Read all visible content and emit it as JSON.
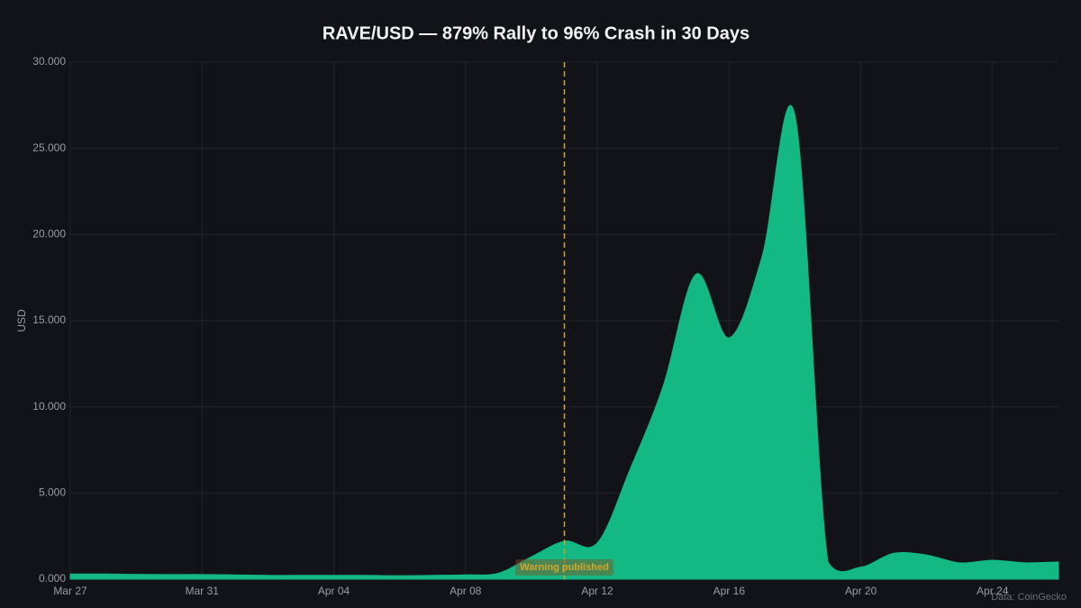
{
  "chart_data": {
    "type": "area",
    "title": "RAVE/USD — 879% Rally to 96% Crash in 30 Days",
    "y_label": "USD",
    "source": "Data: CoinGecko",
    "categories": [
      "Mar 27",
      null,
      null,
      null,
      "Mar 31",
      null,
      null,
      null,
      "Apr 04",
      null,
      null,
      null,
      "Apr 08",
      null,
      null,
      null,
      "Apr 12",
      null,
      null,
      null,
      "Apr 16",
      null,
      null,
      null,
      "Apr 20",
      null,
      null,
      null,
      "Apr 24",
      null,
      null
    ],
    "series": [
      {
        "name": "RAVE/USD",
        "color": "#13b883",
        "values": [
          0.3,
          0.3,
          0.28,
          0.27,
          0.27,
          0.25,
          0.22,
          0.22,
          0.22,
          0.22,
          0.2,
          0.22,
          0.25,
          0.35,
          1.3,
          2.2,
          2.1,
          6.4,
          11.2,
          17.7,
          14.0,
          18.7,
          26.9,
          1.0,
          0.7,
          1.5,
          1.4,
          0.95,
          1.1,
          0.95,
          1.0
        ]
      }
    ],
    "ylim": [
      0,
      30
    ],
    "yticks": [
      {
        "value": 0,
        "label": "0.000"
      },
      {
        "value": 5,
        "label": "5.000"
      },
      {
        "value": 10,
        "label": "10.000"
      },
      {
        "value": 15,
        "label": "15.000"
      },
      {
        "value": 20,
        "label": "20.000"
      },
      {
        "value": 25,
        "label": "25.000"
      },
      {
        "value": 30,
        "label": "30.000"
      }
    ],
    "grid": true,
    "annotations": [
      {
        "text": "Warning published",
        "x": 15,
        "color": "#d4a72c"
      }
    ]
  }
}
